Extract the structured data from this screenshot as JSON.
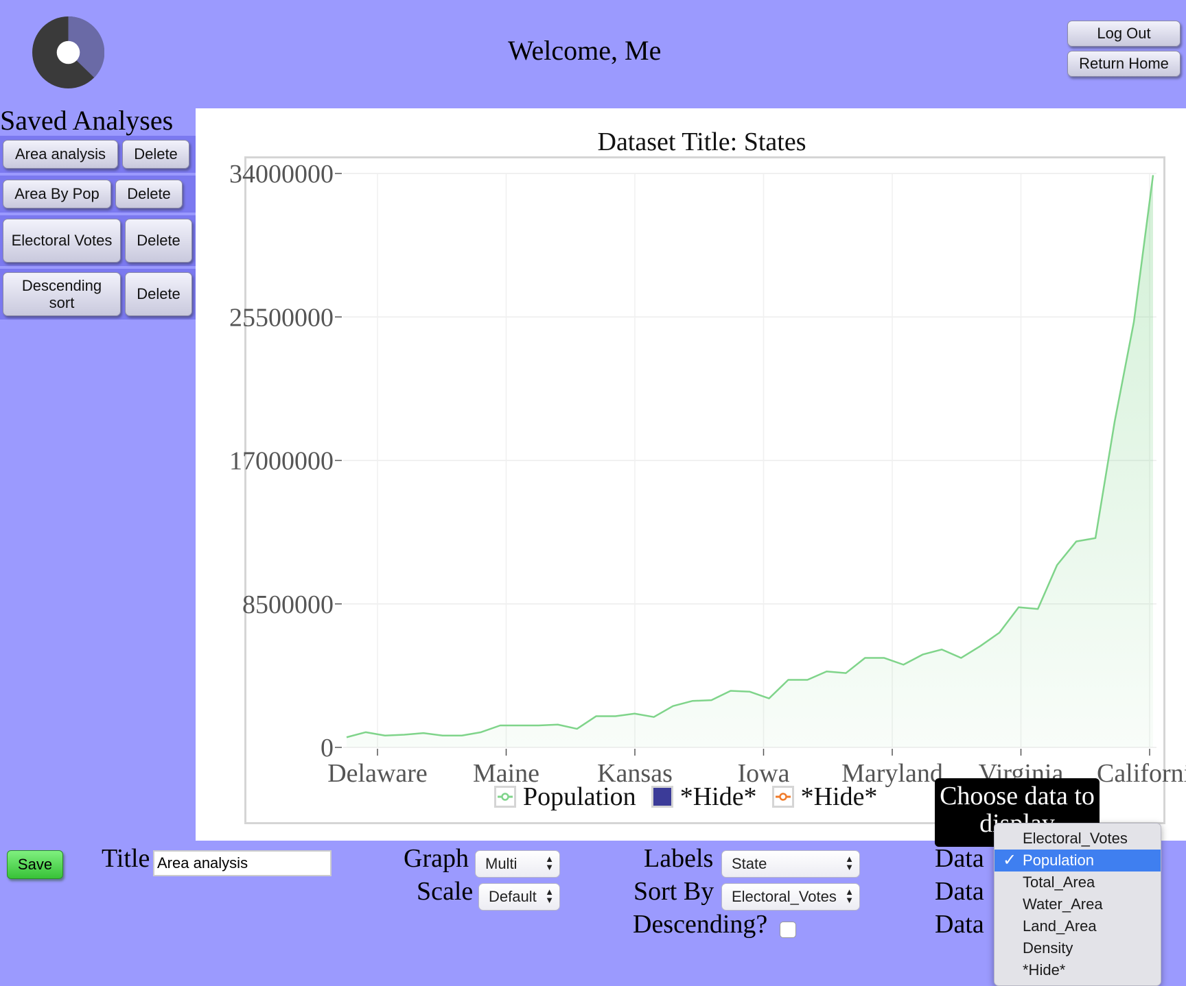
{
  "header": {
    "welcome": "Welcome, Me",
    "logout_label": "Log Out",
    "return_home_label": "Return Home"
  },
  "sidebar": {
    "title": "Saved Analyses",
    "items": [
      {
        "label": "Area analysis",
        "delete_label": "Delete"
      },
      {
        "label": "Area By Pop",
        "delete_label": "Delete"
      },
      {
        "label": "Electoral Votes",
        "delete_label": "Delete"
      },
      {
        "label": "Descending sort",
        "delete_label": "Delete"
      }
    ]
  },
  "chart_data": {
    "type": "area",
    "title": "Dataset Title: States",
    "ylim": [
      0,
      34000000
    ],
    "yticks": [
      "0",
      "8500000",
      "17000000",
      "25500000",
      "34000000"
    ],
    "xtick_labels": [
      "Delaware",
      "Maine",
      "Kansas",
      "Iowa",
      "Maryland",
      "Virginia",
      "California"
    ],
    "grid": true,
    "legend_position": "bottom",
    "series": [
      {
        "name": "Population",
        "color": "#7fd48a",
        "values": [
          600000,
          900000,
          700000,
          750000,
          850000,
          700000,
          700000,
          900000,
          1300000,
          1300000,
          1300000,
          1350000,
          1100000,
          1850000,
          1850000,
          2000000,
          1800000,
          2450000,
          2750000,
          2800000,
          3350000,
          3300000,
          2900000,
          4000000,
          4000000,
          4500000,
          4400000,
          5300000,
          5300000,
          4900000,
          5500000,
          5800000,
          5300000,
          6000000,
          6800000,
          8300000,
          8200000,
          10800000,
          12200000,
          12400000,
          19300000,
          25200000,
          33900000
        ]
      }
    ],
    "legend": [
      {
        "label": "Population",
        "color": "#7fd48a",
        "shape": "line-circle"
      },
      {
        "label": "*Hide*",
        "color": "#3b3b98",
        "shape": "square"
      },
      {
        "label": "*Hide*",
        "color": "#f07b2a",
        "shape": "line-circle"
      }
    ]
  },
  "tooltip": {
    "text": "Choose data to display"
  },
  "controls": {
    "save_label": "Save",
    "title_label": "Title",
    "title_value": "Area analysis",
    "graph_label": "Graph",
    "graph_value": "Multi",
    "scale_label": "Scale",
    "scale_value": "Default",
    "labels_label": "Labels",
    "labels_value": "State",
    "sortby_label": "Sort By",
    "sortby_value": "Electoral_Votes",
    "descending_label": "Descending?",
    "data_label_1": "Data",
    "data_label_2": "Data",
    "data_label_3": "Data"
  },
  "dropdown": {
    "options": [
      "Electoral_Votes",
      "Population",
      "Total_Area",
      "Water_Area",
      "Land_Area",
      "Density",
      "*Hide*"
    ],
    "selected": "Population"
  },
  "icons": {
    "logo": "donut-chart-logo",
    "arrows": "updown-arrows-icon",
    "check": "checkmark-icon"
  }
}
